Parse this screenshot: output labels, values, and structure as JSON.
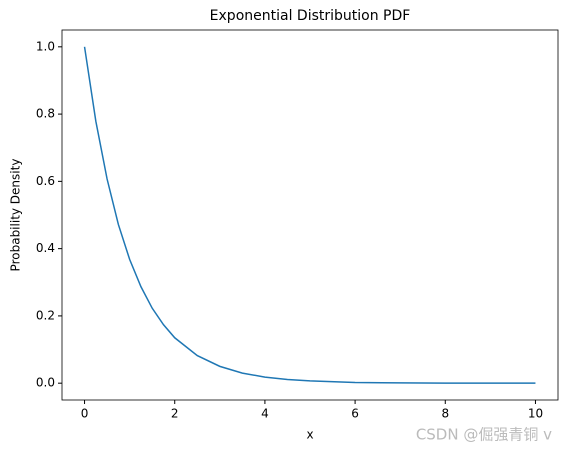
{
  "chart_data": {
    "type": "line",
    "title": "Exponential Distribution PDF",
    "x_label": "x",
    "y_label": "Probability Density",
    "x": [
      0,
      0.25,
      0.5,
      0.75,
      1,
      1.25,
      1.5,
      1.75,
      2,
      2.5,
      3,
      3.5,
      4,
      4.5,
      5,
      6,
      7,
      8,
      9,
      10
    ],
    "series": [
      {
        "color": "#1f77b4",
        "values": [
          1,
          0.779,
          0.607,
          0.472,
          0.368,
          0.287,
          0.223,
          0.174,
          0.135,
          0.082,
          0.05,
          0.03,
          0.018,
          0.011,
          0.007,
          0.002,
          0.001,
          0,
          0,
          0
        ]
      }
    ],
    "xlim": [
      -0.5,
      10.5
    ],
    "ylim": [
      -0.05,
      1.05
    ],
    "xticks": [
      0,
      2,
      4,
      6,
      8,
      10
    ],
    "yticks": [
      {
        "value": 0,
        "label": "0.0"
      },
      0.2,
      0.4,
      0.6,
      0.8,
      {
        "value": 1,
        "label": "1.0"
      }
    ],
    "watermark": "CSDN @倔强青铜 v"
  }
}
